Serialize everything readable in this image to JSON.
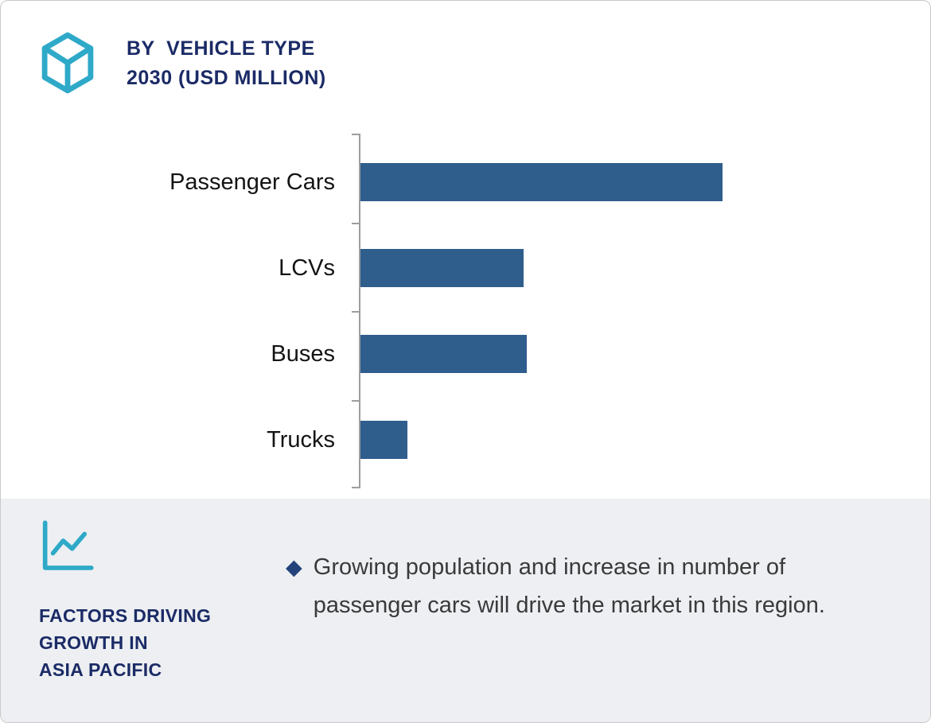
{
  "header": {
    "title_line1": "BY  VEHICLE TYPE",
    "title_line2": "2030 (USD MILLION)"
  },
  "chart_data": {
    "type": "bar",
    "orientation": "horizontal",
    "title": "BY VEHICLE TYPE 2030 (USD MILLION)",
    "categories": [
      "Passenger Cars",
      "LCVs",
      "Buses",
      "Trucks"
    ],
    "values": [
      100,
      45,
      46,
      13
    ],
    "value_note": "numeric axis not shown; values estimated relative to largest bar (Passenger Cars = 100)",
    "unit": "USD Million",
    "year": "2030",
    "bar_color": "#2F5D8C",
    "grid": false,
    "legend": false,
    "xlabel": "",
    "ylabel": ""
  },
  "footer": {
    "heading_lines": [
      "FACTORS DRIVING",
      "GROWTH IN",
      "ASIA PACIFIC"
    ],
    "bullet_marker": "◆",
    "bullet_text": "Growing population and increase in number of passenger cars will drive the market in this region."
  },
  "colors": {
    "navy": "#1B2B66",
    "teal": "#2FA9C8",
    "bar": "#2F5D8C",
    "diamond": "#24437C",
    "footer_bg": "#EDEFF2",
    "axis": "#9E9E9E",
    "text": "#3A3A3A"
  }
}
